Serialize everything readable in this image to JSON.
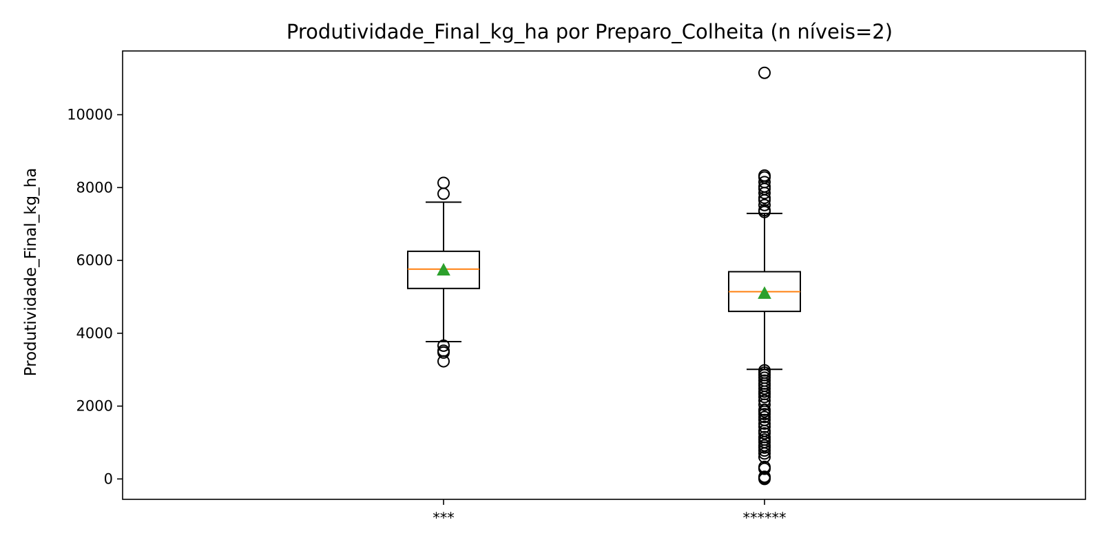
{
  "chart_data": {
    "type": "box",
    "title": "Produtividade_Final_kg_ha por Preparo_Colheita (n níveis=2)",
    "xlabel": "",
    "ylabel": "Produtividade_Final_kg_ha",
    "ylim": [
      -560,
      11750
    ],
    "yticks": [
      0,
      2000,
      4000,
      6000,
      8000,
      10000
    ],
    "grid": false,
    "colors": {
      "box": "#000000",
      "median": "#ff7f0e",
      "mean": "#2ca02c",
      "flier": "#000000"
    },
    "categories": [
      "***",
      "******"
    ],
    "boxes": [
      {
        "category": "***",
        "whisker_low": 3770,
        "q1": 5230,
        "median": 5760,
        "mean": 5740,
        "q3": 6250,
        "whisker_high": 7600,
        "fliers": [
          3230,
          3470,
          3520,
          3660,
          7830,
          8130
        ]
      },
      {
        "category": "******",
        "whisker_low": 3010,
        "q1": 4600,
        "median": 5140,
        "mean": 5100,
        "q3": 5690,
        "whisker_high": 7290,
        "fliers": [
          0,
          30,
          60,
          280,
          330,
          600,
          700,
          780,
          860,
          920,
          1010,
          1080,
          1150,
          1250,
          1320,
          1430,
          1520,
          1620,
          1700,
          1780,
          1850,
          1900,
          2040,
          2150,
          2250,
          2330,
          2400,
          2480,
          2560,
          2620,
          2700,
          2780,
          2850,
          2920,
          2980,
          7330,
          7380,
          7520,
          7650,
          7720,
          7850,
          7960,
          8030,
          8150,
          8280,
          8330,
          11150
        ]
      }
    ]
  }
}
